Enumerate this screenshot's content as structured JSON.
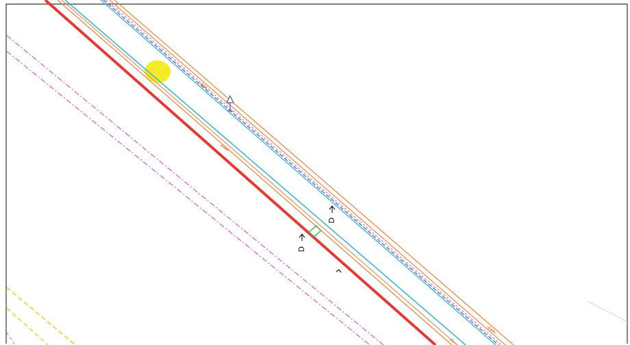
{
  "labels": {
    "label_a": "D",
    "label_b": "D"
  },
  "colors": {
    "background": "#ffffff",
    "frame": "#333333",
    "red_line": "#e53a33",
    "orange_line": "#e58a4a",
    "cyan_line": "#3fb4d6",
    "blue_dash": "#4a5fd0",
    "magenta_dash": "#d24fb8",
    "yellow_dash": "#f0c21c",
    "green_mark": "#3bb54a",
    "highlight": "#f4ea10"
  },
  "icons": {
    "arrow_up": "arrow-up-icon",
    "leader_marker": "leader-marker-icon"
  }
}
